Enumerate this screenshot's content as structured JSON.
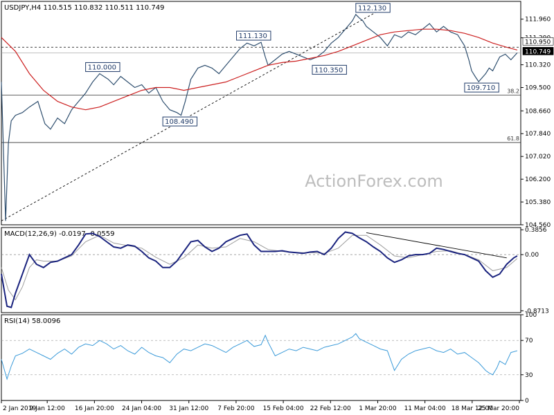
{
  "chart_data": [
    {
      "type": "line",
      "title": "USDJPY,H4  110.515 110.832 110.511 110.749",
      "ylim": [
        104.56,
        112.6
      ],
      "y_ticks": [
        "111.960",
        "111.290",
        "110.320",
        "109.500",
        "108.660",
        "107.840",
        "107.020",
        "106.200",
        "105.380",
        "104.560"
      ],
      "current_price": "110.749",
      "marker_level": "110.950",
      "fib_levels": [
        {
          "label": "38.2",
          "value": 109.23
        },
        {
          "label": "61.8",
          "value": 107.52
        }
      ],
      "annotations": [
        {
          "label": "110.000",
          "x": 120,
          "y": 110.0
        },
        {
          "label": "108.490",
          "x": 230,
          "y": 108.49
        },
        {
          "label": "111.130",
          "x": 335,
          "y": 111.13
        },
        {
          "label": "110.350",
          "x": 443,
          "y": 110.35
        },
        {
          "label": "112.130",
          "x": 505,
          "y": 112.13
        },
        {
          "label": "109.710",
          "x": 660,
          "y": 109.71
        }
      ],
      "series": [
        {
          "name": "USDJPY",
          "x": [
            0,
            6,
            10,
            14,
            20,
            30,
            40,
            52,
            62,
            70,
            80,
            90,
            100,
            110,
            120,
            130,
            140,
            152,
            160,
            170,
            180,
            190,
            200,
            210,
            220,
            230,
            240,
            250,
            256,
            262,
            270,
            280,
            290,
            300,
            310,
            320,
            330,
            340,
            350,
            360,
            370,
            376,
            380,
            390,
            400,
            410,
            420,
            430,
            440,
            450,
            460,
            470,
            480,
            490,
            500,
            505,
            510,
            515,
            520,
            530,
            540,
            550,
            560,
            570,
            580,
            590,
            600,
            610,
            620,
            630,
            640,
            650,
            660,
            666,
            670,
            675,
            680,
            690,
            695,
            700,
            706,
            710,
            718,
            726,
            735
          ],
          "y": [
            109.7,
            104.7,
            107.5,
            108.3,
            108.5,
            108.6,
            108.8,
            109.0,
            108.2,
            108.0,
            108.4,
            108.2,
            108.7,
            109.0,
            109.3,
            109.7,
            110.0,
            109.8,
            109.6,
            109.9,
            109.7,
            109.5,
            109.6,
            109.3,
            109.5,
            109.0,
            108.7,
            108.6,
            108.5,
            109.0,
            109.8,
            110.2,
            110.3,
            110.2,
            110.0,
            110.3,
            110.6,
            110.9,
            111.1,
            111.0,
            111.13,
            110.6,
            110.3,
            110.5,
            110.7,
            110.8,
            110.7,
            110.6,
            110.5,
            110.6,
            110.8,
            111.1,
            111.3,
            111.6,
            111.9,
            112.13,
            112.0,
            111.9,
            111.7,
            111.5,
            111.3,
            111.0,
            111.4,
            111.3,
            111.5,
            111.4,
            111.6,
            111.8,
            111.5,
            111.7,
            111.5,
            111.4,
            111.0,
            110.5,
            110.1,
            109.9,
            109.71,
            110.0,
            110.2,
            110.1,
            110.4,
            110.6,
            110.7,
            110.5,
            110.749
          ]
        },
        {
          "name": "SMA",
          "x": [
            0,
            20,
            40,
            60,
            80,
            100,
            120,
            140,
            160,
            180,
            200,
            220,
            240,
            260,
            280,
            300,
            320,
            340,
            360,
            380,
            400,
            420,
            440,
            460,
            480,
            500,
            520,
            540,
            560,
            580,
            600,
            620,
            640,
            660,
            680,
            700,
            720,
            735
          ],
          "y": [
            111.3,
            110.8,
            110.0,
            109.4,
            109.0,
            108.8,
            108.7,
            108.8,
            109.0,
            109.2,
            109.4,
            109.5,
            109.5,
            109.4,
            109.5,
            109.6,
            109.7,
            109.9,
            110.1,
            110.3,
            110.4,
            110.45,
            110.55,
            110.65,
            110.8,
            111.0,
            111.2,
            111.4,
            111.5,
            111.55,
            111.6,
            111.6,
            111.55,
            111.45,
            111.3,
            111.1,
            110.95,
            110.85
          ]
        }
      ]
    },
    {
      "type": "line",
      "title": "MACD(12,26,9) -0.0197 -0.0559",
      "ylim": [
        -0.9,
        0.42
      ],
      "y_ticks": [
        "0.3856",
        "0.00",
        "-0.8713"
      ],
      "series": [
        {
          "name": "MACD",
          "x": [
            0,
            8,
            14,
            20,
            30,
            40,
            50,
            60,
            70,
            80,
            90,
            100,
            110,
            120,
            130,
            140,
            150,
            160,
            170,
            180,
            190,
            200,
            210,
            220,
            230,
            240,
            250,
            260,
            270,
            280,
            290,
            300,
            310,
            320,
            330,
            340,
            350,
            360,
            370,
            380,
            390,
            400,
            410,
            420,
            430,
            440,
            450,
            460,
            470,
            480,
            490,
            500,
            510,
            520,
            530,
            540,
            550,
            560,
            570,
            580,
            590,
            600,
            610,
            620,
            630,
            640,
            650,
            660,
            670,
            680,
            690,
            700,
            710,
            720,
            730,
            735
          ],
          "y": [
            -0.3,
            -0.8,
            -0.82,
            -0.6,
            -0.3,
            0.0,
            -0.15,
            -0.2,
            -0.12,
            -0.1,
            -0.05,
            0.0,
            0.15,
            0.32,
            0.33,
            0.28,
            0.2,
            0.12,
            0.1,
            0.15,
            0.13,
            0.05,
            -0.05,
            -0.1,
            -0.2,
            -0.2,
            -0.1,
            0.05,
            0.2,
            0.22,
            0.12,
            0.05,
            0.1,
            0.2,
            0.25,
            0.3,
            0.32,
            0.15,
            0.05,
            0.05,
            0.05,
            0.06,
            0.04,
            0.03,
            0.02,
            0.04,
            0.05,
            0.0,
            0.1,
            0.25,
            0.35,
            0.33,
            0.26,
            0.2,
            0.12,
            0.05,
            -0.05,
            -0.12,
            -0.08,
            -0.02,
            0.0,
            0.0,
            0.02,
            0.1,
            0.08,
            0.05,
            0.02,
            0.0,
            -0.05,
            -0.1,
            -0.25,
            -0.35,
            -0.3,
            -0.15,
            -0.05,
            -0.02
          ]
        },
        {
          "name": "Signal",
          "x": [
            0,
            10,
            20,
            30,
            40,
            50,
            60,
            80,
            100,
            120,
            140,
            160,
            180,
            200,
            220,
            240,
            260,
            280,
            300,
            320,
            340,
            360,
            380,
            400,
            420,
            440,
            460,
            480,
            500,
            520,
            540,
            560,
            580,
            600,
            620,
            640,
            660,
            680,
            700,
            720,
            735
          ],
          "y": [
            -0.2,
            -0.55,
            -0.7,
            -0.5,
            -0.2,
            -0.08,
            -0.1,
            -0.1,
            -0.02,
            0.2,
            0.3,
            0.18,
            0.14,
            0.1,
            -0.04,
            -0.15,
            -0.05,
            0.15,
            0.1,
            0.12,
            0.25,
            0.2,
            0.08,
            0.05,
            0.03,
            0.03,
            0.02,
            0.1,
            0.3,
            0.3,
            0.15,
            -0.02,
            -0.05,
            0.0,
            0.05,
            0.06,
            0.0,
            -0.08,
            -0.25,
            -0.2,
            -0.06
          ]
        }
      ],
      "trendline": {
        "x": [
          520,
          720
        ],
        "y": [
          0.34,
          -0.05
        ]
      }
    },
    {
      "type": "line",
      "title": "RSI(14) 58.0096",
      "ylim": [
        0,
        100
      ],
      "y_ticks": [
        "100",
        "70",
        "30",
        "0"
      ],
      "series": [
        {
          "name": "RSI",
          "x": [
            0,
            8,
            14,
            20,
            30,
            40,
            50,
            60,
            70,
            80,
            90,
            100,
            110,
            120,
            130,
            140,
            150,
            160,
            170,
            180,
            190,
            200,
            210,
            220,
            230,
            240,
            250,
            260,
            270,
            280,
            290,
            300,
            310,
            320,
            330,
            340,
            350,
            360,
            370,
            376,
            380,
            390,
            400,
            410,
            420,
            430,
            440,
            450,
            460,
            470,
            480,
            490,
            500,
            505,
            510,
            520,
            530,
            540,
            550,
            560,
            570,
            580,
            590,
            600,
            610,
            620,
            630,
            640,
            650,
            660,
            670,
            680,
            690,
            695,
            700,
            706,
            710,
            718,
            726,
            735
          ],
          "y": [
            48,
            25,
            40,
            52,
            55,
            60,
            56,
            52,
            48,
            55,
            60,
            54,
            62,
            66,
            64,
            70,
            66,
            60,
            64,
            58,
            54,
            62,
            56,
            52,
            50,
            44,
            54,
            60,
            58,
            62,
            66,
            64,
            60,
            56,
            62,
            66,
            70,
            63,
            65,
            76,
            68,
            52,
            56,
            60,
            58,
            62,
            60,
            58,
            62,
            64,
            66,
            70,
            74,
            78,
            72,
            68,
            64,
            60,
            58,
            35,
            48,
            54,
            58,
            60,
            62,
            58,
            56,
            60,
            54,
            56,
            50,
            44,
            35,
            32,
            30,
            38,
            46,
            42,
            56,
            58
          ]
        }
      ]
    }
  ],
  "x_labels": [
    "2 Jan 2019",
    "9 Jan 12:00",
    "16 Jan 20:00",
    "24 Jan 04:00",
    "31 Jan 12:00",
    "7 Feb 20:00",
    "15 Feb 04:00",
    "22 Feb 12:00",
    "1 Mar 20:00",
    "11 Mar 04:00",
    "18 Mar 12:00",
    "25 Mar 20:00"
  ],
  "watermark": "ActionForex.com",
  "colors": {
    "price": "#2f4f6f",
    "sma": "#cc1f1f",
    "macd": "#1a237e",
    "signal": "#9e9e9e",
    "rsi": "#3a9ad9",
    "level": "#444444",
    "tag_bg": "#ffffff",
    "tag_border": "#1f3a68",
    "label_dark": "#1f3a68"
  }
}
